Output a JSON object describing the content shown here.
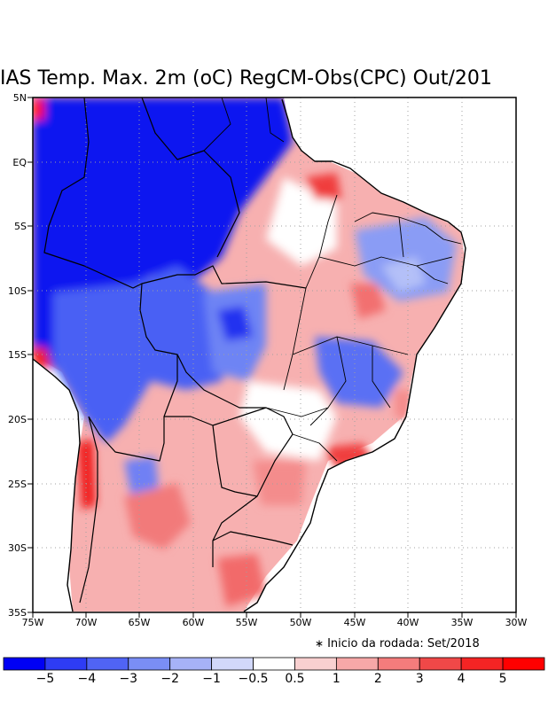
{
  "title": "IAS Temp. Max. 2m (oC) RegCM-Obs(CPC) Out/201",
  "note": "Inicio da rodada: Set/2018",
  "x_ticks": [
    "75W",
    "70W",
    "65W",
    "60W",
    "55W",
    "50W",
    "45W",
    "40W",
    "35W",
    "30W"
  ],
  "y_ticks": [
    "5N",
    "EQ",
    "5S",
    "10S",
    "15S",
    "20S",
    "25S",
    "30S",
    "35S"
  ],
  "legend": {
    "colors": [
      "#0000f5",
      "#2e3cf5",
      "#5064f5",
      "#7a8ef5",
      "#a6b2f7",
      "#d2d8fa",
      "#ffffff",
      "#f9d0d0",
      "#f7a8a8",
      "#f47c7c",
      "#f04848",
      "#f42424",
      "#ff0000"
    ],
    "labels": [
      "−5",
      "−4",
      "−3",
      "−2",
      "−1",
      "−0.5",
      "0.5",
      "1",
      "2",
      "3",
      "4",
      "5"
    ]
  },
  "colors": {
    "frame": "#000000",
    "grid": "#a0a0a0"
  }
}
